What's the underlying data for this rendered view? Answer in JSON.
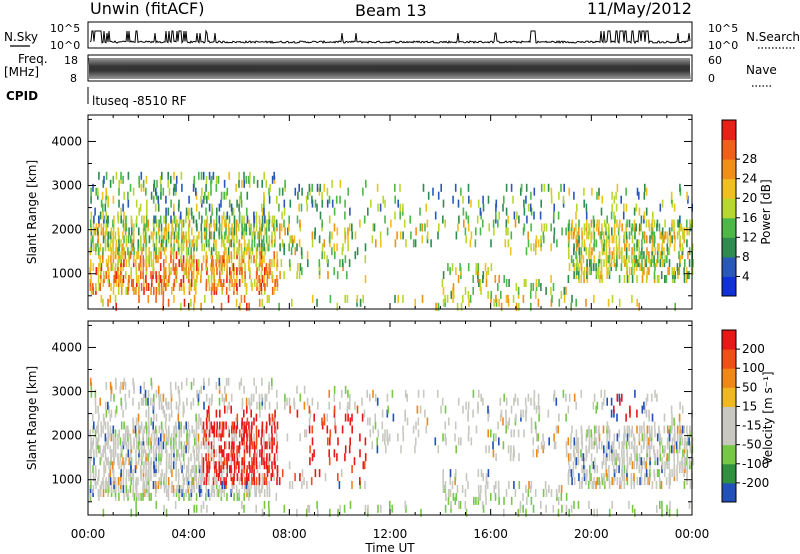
{
  "header": {
    "station": "Unwin (fitACF)",
    "beam": "Beam 13",
    "date": "11/May/2012"
  },
  "left_labels": {
    "nsky": "N.Sky",
    "freq": "Freq.",
    "freq_unit": "[MHz]",
    "cpid": "CPID"
  },
  "right_labels": {
    "nsearch": "N.Search",
    "nave": "Nave"
  },
  "nsky_ticks": [
    "10^5",
    "10^0"
  ],
  "nsearch_ticks": [
    "10^5",
    "10^0"
  ],
  "freq_ticks": [
    "18",
    "8"
  ],
  "nave_ticks": [
    "60",
    "0"
  ],
  "cpid_text": "ltuseq -8510 RF",
  "colors": {
    "power": [
      "#1030d8",
      "#2a58b8",
      "#2f8c50",
      "#4cb848",
      "#b8d830",
      "#f0c020",
      "#f09018",
      "#f06018",
      "#e82018"
    ],
    "velocity": [
      "#e81818",
      "#f05018",
      "#f08818",
      "#f0b820",
      "#c8c8c0",
      "#c8c8c0",
      "#78c848",
      "#2f9040",
      "#2050b8"
    ]
  },
  "chart_data": [
    {
      "type": "heatmap",
      "name": "Power",
      "ylabel": "Slant Range [km]",
      "yticks": [
        "1000",
        "2000",
        "3000",
        "4000"
      ],
      "ylim": [
        200,
        4600
      ],
      "colorbar_label": "Power [dB]",
      "colorbar_ticks": [
        "4",
        "8",
        "12",
        "16",
        "20",
        "24",
        "28"
      ],
      "colorbar_range": [
        0,
        30
      ]
    },
    {
      "type": "heatmap",
      "name": "Velocity",
      "ylabel": "Slant Range [km]",
      "yticks": [
        "1000",
        "2000",
        "3000",
        "4000"
      ],
      "ylim": [
        200,
        4600
      ],
      "colorbar_label": "Velocity [m s⁻¹]",
      "colorbar_ticks": [
        "200",
        "100",
        "50",
        "15",
        "-15",
        "-50",
        "-100",
        "-200"
      ]
    }
  ],
  "xaxis": {
    "label": "Time UT",
    "ticks": [
      "00:00",
      "04:00",
      "08:00",
      "12:00",
      "16:00",
      "20:00",
      "00:00"
    ]
  }
}
